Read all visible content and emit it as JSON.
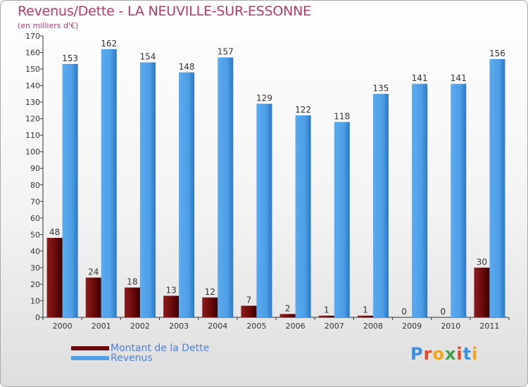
{
  "title": "Revenus/Dette - LA NEUVILLE-SUR-ESSONNE",
  "subtitle": "(en milliers d'€)",
  "logo": {
    "text": "Proxiti",
    "colors": [
      "#3e8ede",
      "#e0492a",
      "#f2a51c",
      "#43a047",
      "#e0492a",
      "#3e8ede",
      "#f2a51c"
    ]
  },
  "legend": [
    {
      "label": "Montant de la Dette",
      "color": "#6b0a0a"
    },
    {
      "label": "Revenus",
      "color": "#4f9fe6"
    }
  ],
  "chart_data": {
    "type": "bar",
    "title": "Revenus/Dette - LA NEUVILLE-SUR-ESSONNE",
    "ylabel": "(en milliers d'€)",
    "xlabel": "",
    "categories": [
      "2000",
      "2001",
      "2002",
      "2003",
      "2004",
      "2005",
      "2006",
      "2007",
      "2008",
      "2009",
      "2010",
      "2011"
    ],
    "series": [
      {
        "name": "Montant de la Dette",
        "color": "#6b0a0a",
        "values": [
          48,
          24,
          18,
          13,
          12,
          7,
          2,
          1,
          1,
          0,
          0,
          30
        ]
      },
      {
        "name": "Revenus",
        "color": "#4f9fe6",
        "values": [
          153,
          162,
          154,
          148,
          157,
          129,
          122,
          118,
          135,
          141,
          141,
          156
        ]
      }
    ],
    "ylim": [
      0,
      170
    ],
    "yticks": [
      0,
      10,
      20,
      30,
      40,
      50,
      60,
      70,
      80,
      90,
      100,
      110,
      120,
      130,
      140,
      150,
      160,
      170
    ],
    "grid": false,
    "legend_position": "bottom-left",
    "data_labels": true
  }
}
